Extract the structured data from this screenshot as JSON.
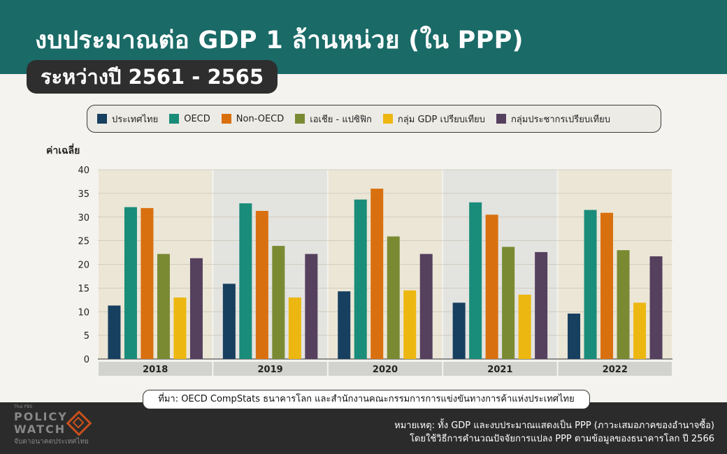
{
  "title": "งบประมาณต่อ GDP 1 ล้านหน่วย (ใน PPP)",
  "subtitle": "ระหว่างปี 2561 - 2565",
  "colors": {
    "header_bg": "#1a6a67",
    "panel_warm": "#ece6d6",
    "panel_cool": "#e3e3e0",
    "year_bar": "#d2d2cf"
  },
  "chart_data": {
    "type": "bar",
    "ylabel": "ค่าเฉลี่ย",
    "ylim": [
      0,
      40
    ],
    "yticks": [
      0,
      5,
      10,
      15,
      20,
      25,
      30,
      35,
      40
    ],
    "categories": [
      "2018",
      "2019",
      "2020",
      "2021",
      "2022"
    ],
    "grid": true,
    "legend_position": "top",
    "series": [
      {
        "name": "ประเทศไทย",
        "color": "#173f5f",
        "values": [
          11.3,
          15.9,
          14.3,
          11.9,
          9.6
        ]
      },
      {
        "name": "OECD",
        "color": "#1a8c7a",
        "values": [
          32.1,
          32.9,
          33.7,
          33.1,
          31.5
        ]
      },
      {
        "name": "Non-OECD",
        "color": "#d9700f",
        "values": [
          31.9,
          31.3,
          36.0,
          30.5,
          30.9
        ]
      },
      {
        "name": "เอเชีย - แปซิฟิก",
        "color": "#7a8a33",
        "values": [
          22.2,
          23.9,
          25.9,
          23.7,
          23.0
        ]
      },
      {
        "name": "กลุ่ม GDP เปรียบเทียบ",
        "color": "#edb711",
        "values": [
          13.0,
          13.0,
          14.5,
          13.6,
          11.9
        ]
      },
      {
        "name": "กลุ่มประชากรเปรียบเทียบ",
        "color": "#55405e",
        "values": [
          21.3,
          22.2,
          22.2,
          22.6,
          21.7
        ]
      }
    ]
  },
  "source": "ที่มา: OECD CompStats ธนาคารโลก และสำนักงานคณะกรรมการการแข่งขันทางการค้าแห่งประเทศไทย",
  "footer": {
    "logo_small": "Thai PBS",
    "logo_line1": "POLICY",
    "logo_line2": "WATCH",
    "logo_tagline": "จับตาอนาคตประเทศไทย",
    "note_line1": "หมายเหตุ: ทั้ง GDP และงบประมาณแสดงเป็น PPP (ภาวะเสมอภาคของอำนาจซื้อ)",
    "note_line2": "โดยใช้วิธีการคำนวณปัจจัยการแปลง PPP ตามข้อมูลของธนาคารโลก ปี 2566"
  }
}
